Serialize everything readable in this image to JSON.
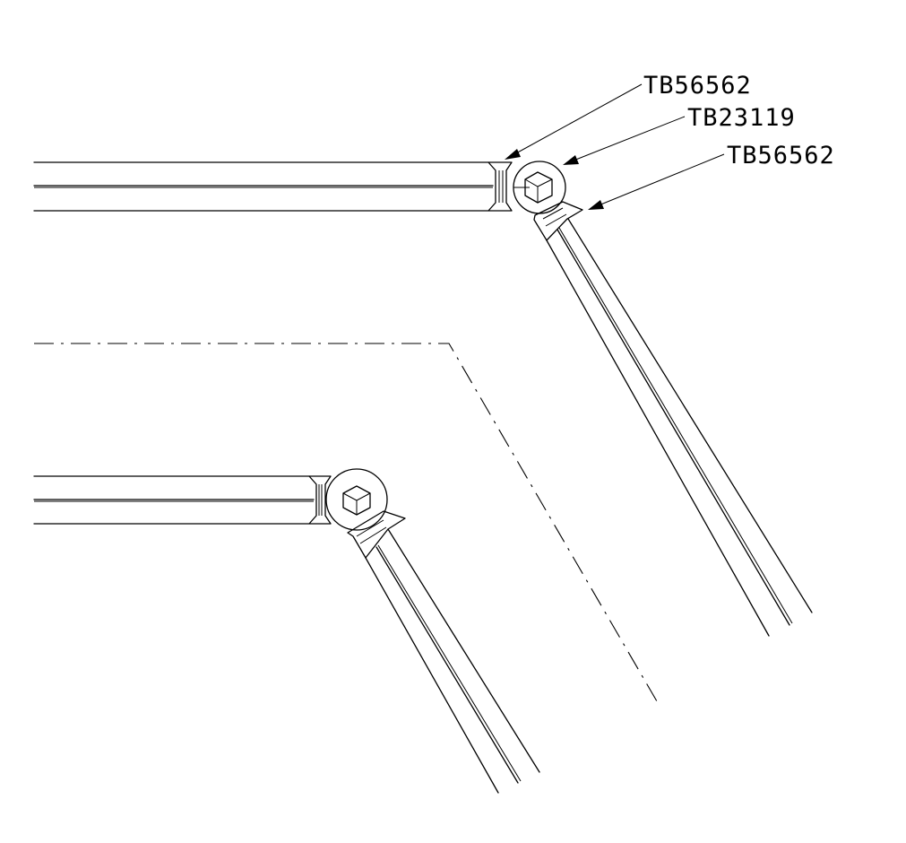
{
  "labels": {
    "callout_1": "TB56562",
    "callout_2": "TB23119",
    "callout_3": "TB56562"
  },
  "colors": {
    "line": "#000000",
    "background": "#ffffff"
  }
}
